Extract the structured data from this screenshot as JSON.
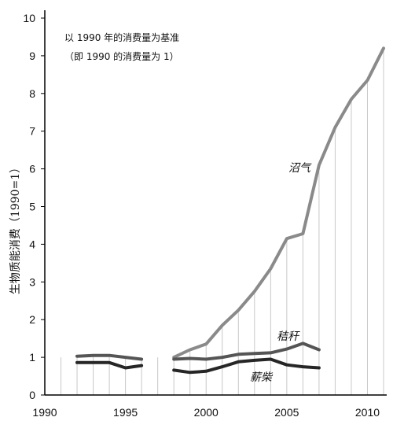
{
  "chart_data": {
    "type": "line",
    "title": "",
    "annotations": [
      "以 1990 年的消费量为基准",
      "（即 1990 的消费量为 1）"
    ],
    "ylabel": "生物质能消费（1990=1）",
    "xlabel": "",
    "xlim": [
      1990,
      2011
    ],
    "ylim": [
      0,
      10
    ],
    "x_ticks": [
      1990,
      1995,
      2000,
      2005,
      2010
    ],
    "y_ticks": [
      0,
      1,
      2,
      3,
      4,
      5,
      6,
      7,
      8,
      9,
      10
    ],
    "grid": "vertical lines at each year (light)",
    "colors": {
      "biogas": "#8a8a8a",
      "straw": "#555555",
      "firewood": "#262626",
      "grid": "#c8c8c8",
      "axis": "#000000"
    },
    "series": [
      {
        "name": "沼气",
        "color_key": "biogas",
        "segments": [
          {
            "x": [
              1998,
              1999,
              2000,
              2001,
              2002,
              2003,
              2004,
              2005,
              2006,
              2007,
              2008,
              2009,
              2010,
              2011
            ],
            "y": [
              1.0,
              1.2,
              1.35,
              1.85,
              2.25,
              2.75,
              3.35,
              4.15,
              4.28,
              6.1,
              7.1,
              7.85,
              8.35,
              9.2
            ]
          }
        ]
      },
      {
        "name": "秸秆",
        "color_key": "straw",
        "segments": [
          {
            "x": [
              1992,
              1993,
              1994,
              1995,
              1996
            ],
            "y": [
              1.03,
              1.05,
              1.05,
              1.0,
              0.95
            ]
          },
          {
            "x": [
              1998,
              1999,
              2000,
              2001,
              2002,
              2003,
              2004,
              2005,
              2006,
              2007
            ],
            "y": [
              0.95,
              0.97,
              0.95,
              1.0,
              1.08,
              1.1,
              1.12,
              1.22,
              1.37,
              1.2
            ]
          }
        ]
      },
      {
        "name": "薪柴",
        "color_key": "firewood",
        "segments": [
          {
            "x": [
              1992,
              1993,
              1994,
              1995,
              1996
            ],
            "y": [
              0.86,
              0.86,
              0.86,
              0.72,
              0.78
            ]
          },
          {
            "x": [
              1998,
              1999,
              2000,
              2001,
              2002,
              2003,
              2004,
              2005,
              2006,
              2007
            ],
            "y": [
              0.66,
              0.6,
              0.63,
              0.75,
              0.88,
              0.92,
              0.95,
              0.8,
              0.75,
              0.72
            ]
          }
        ]
      }
    ]
  }
}
